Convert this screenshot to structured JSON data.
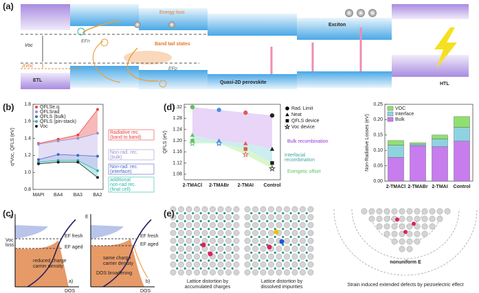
{
  "panel_a": {
    "label": "(a)",
    "energy_loss": "Energy loss",
    "exciton": "Exciton",
    "band_tail": "Band tail states",
    "voc": "Voc",
    "delta_voc": "ΔVoc",
    "efn": "EFn",
    "efp": "EFp",
    "etl": "ETL",
    "perovskite": "Quasi-2D perovskite",
    "htl": "HTL"
  },
  "chart_data": [
    {
      "type": "line",
      "panel": "(b)",
      "y_label": "q*Voc, QFLS (eV)",
      "categories": [
        "MAPI",
        "BA4",
        "BA3",
        "BA2"
      ],
      "ylim": [
        0.8,
        1.8
      ],
      "yticks": [
        0.8,
        {
          "value": 1.0,
          "label": "1.0"
        },
        1.2,
        1.4,
        1.6,
        1.8
      ],
      "series": [
        {
          "name": "QFLSe.q.",
          "color": "#e8413c",
          "fill": "#f3a3a0",
          "values": [
            1.34,
            1.39,
            1.44,
            1.74
          ]
        },
        {
          "name": "QFLSrad",
          "color": "#9b8fd0",
          "fill": "#d9d3f2",
          "values": [
            1.33,
            1.37,
            1.4,
            1.46
          ]
        },
        {
          "name": "QFLS (bulk)",
          "color": "#4a63c8",
          "fill": "#b3c1ec",
          "values": [
            1.15,
            1.21,
            1.2,
            1.19
          ]
        },
        {
          "name": "QFLS (pin-stack)",
          "color": "#2bb8a8",
          "fill": "#a8e4e2",
          "values": [
            1.12,
            1.14,
            1.14,
            1.02
          ]
        },
        {
          "name": "Voc",
          "color": "#222222",
          "values": [
            1.1,
            1.12,
            1.12,
            0.94
          ]
        }
      ],
      "annotations": [
        {
          "lines": [
            "Radiative rec.",
            "(band to band)"
          ],
          "color": "#e8413c"
        },
        {
          "lines": [
            "Non-rad. rec.",
            "(bulk)"
          ],
          "color": "#9b8fd0"
        },
        {
          "lines": [
            "Non-rad. rec.",
            "(interface)"
          ],
          "color": "#4a63c8"
        },
        {
          "lines": [
            "additional",
            "non-rad rec.",
            "(final cell)"
          ],
          "color": "#2bb8a8"
        }
      ]
    },
    {
      "type": "scatter",
      "panel": "(d)",
      "y_label": "QFLS (eV)",
      "categories": [
        "2-TMACl",
        "2-TMABr",
        "2-TMAI",
        "Control"
      ],
      "point_colors": [
        "#5cc35c",
        "#4a90e2",
        "#e05a5a",
        "#222222"
      ],
      "ylim": [
        1.06,
        1.33
      ],
      "yticks": [
        1.08,
        1.12,
        1.16,
        {
          "value": 1.2,
          "label": "1.20"
        },
        1.24,
        1.28,
        1.32
      ],
      "series": [
        {
          "name": "Rad. Limit",
          "marker": "circle",
          "color": "#000000",
          "fill": "#e8d5f7",
          "values": [
            1.32,
            1.31,
            1.3,
            1.29
          ]
        },
        {
          "name": "Neat",
          "marker": "triangle",
          "color": "#000000",
          "fill": "#cdeeee",
          "values": [
            1.22,
            1.2,
            1.19,
            1.17
          ]
        },
        {
          "name": "QFLS device",
          "marker": "square",
          "color": "#000000",
          "fill": "#daf6cd",
          "values": [
            1.2,
            1.19,
            1.17,
            1.12
          ]
        },
        {
          "name": "Voc device",
          "marker": "star",
          "color": "#000000",
          "values": [
            1.19,
            1.19,
            1.15,
            1.1
          ]
        }
      ],
      "annotations": [
        {
          "lines": [
            "Bulk recombination"
          ],
          "color": "#9b30d9"
        },
        {
          "lines": [
            "Interfacial",
            "recombination"
          ],
          "color": "#3aa7a0"
        },
        {
          "lines": [
            "Energetic offset"
          ],
          "color": "#5cc35c"
        }
      ]
    },
    {
      "type": "stacked_bar",
      "y_label": "Non-Radiative Losses (eV)",
      "categories": [
        "2-TMACl",
        "2-TMABr",
        "2-TMAI",
        "Control"
      ],
      "ylim": [
        0,
        0.25
      ],
      "yticks": [
        {
          "value": 0,
          "label": "0.00"
        },
        {
          "value": 0.05,
          "label": "0.05"
        },
        {
          "value": 0.1,
          "label": "0.10"
        },
        {
          "value": 0.15,
          "label": "0.15"
        },
        {
          "value": 0.2,
          "label": "0.20"
        },
        {
          "value": 0.25,
          "label": "0.25"
        }
      ],
      "series": [
        {
          "name": "Bulk",
          "color": "#c77dee",
          "values": [
            0.077,
            0.115,
            0.112,
            0.13
          ]
        },
        {
          "name": "Interface",
          "color": "#8fd3e0",
          "values": [
            0.04,
            0.005,
            0.025,
            0.045
          ]
        },
        {
          "name": "VOC",
          "color": "#90e070",
          "values": [
            0.015,
            0.005,
            0.013,
            0.035
          ]
        }
      ]
    }
  ],
  "panel_c": {
    "label": "(c)",
    "y_axis": "E",
    "x_axis": "DOS",
    "voc_loss": [
      "Voc",
      "loss"
    ],
    "ef_fresh": "EF fresh",
    "ef_aged": "EF aged",
    "left_note": [
      "reduced charge",
      "carrier density"
    ],
    "right_note": [
      "same charge",
      "carrier density"
    ],
    "broadening": "DOS broadening",
    "left_tag": "a)",
    "right_tag": "b)"
  },
  "panel_e": {
    "label": "(e)",
    "captions": [
      [
        "Lattice distortion by",
        "accumulated charges"
      ],
      [
        "Lattice distortion by",
        "dissolved impurities"
      ],
      [
        "Strain induced extended defects by piezoelectric effect"
      ]
    ],
    "field_label": "nonuniform E"
  }
}
